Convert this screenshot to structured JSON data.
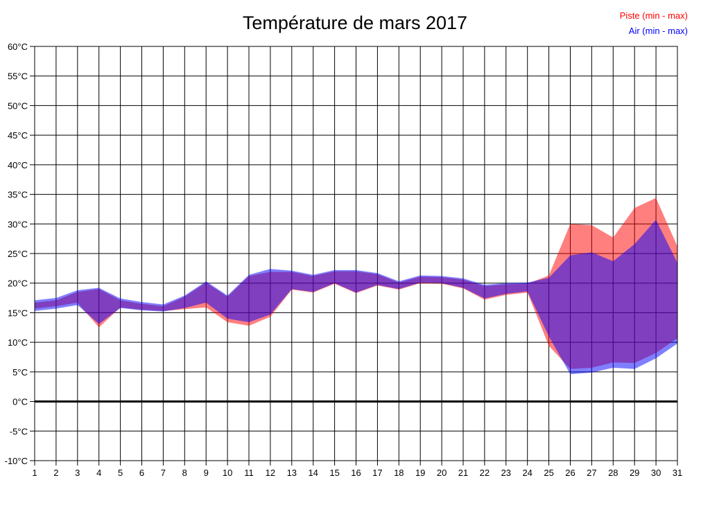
{
  "title": "Température de mars 2017",
  "legend": {
    "items": [
      {
        "label": "Piste (min - max)",
        "color": "#ff0000"
      },
      {
        "label": "Air (min - max)",
        "color": "#0000ff"
      }
    ]
  },
  "chart_data": {
    "type": "area",
    "title": "Température de mars 2017",
    "xlabel": "",
    "ylabel": "",
    "x": [
      1,
      2,
      3,
      4,
      5,
      6,
      7,
      8,
      9,
      10,
      11,
      12,
      13,
      14,
      15,
      16,
      17,
      18,
      19,
      20,
      21,
      22,
      23,
      24,
      25,
      26,
      27,
      28,
      29,
      30,
      31
    ],
    "xtick_labels": [
      "1",
      "2",
      "3",
      "4",
      "5",
      "6",
      "7",
      "8",
      "9",
      "10",
      "11",
      "12",
      "13",
      "14",
      "15",
      "16",
      "17",
      "18",
      "19",
      "20",
      "21",
      "22",
      "23",
      "24",
      "25",
      "26",
      "27",
      "28",
      "29",
      "30",
      "31"
    ],
    "ylim": [
      -10,
      60
    ],
    "ytick_step": 5,
    "yticks": [
      60,
      55,
      50,
      45,
      40,
      35,
      30,
      25,
      20,
      15,
      10,
      5,
      0,
      -5,
      -10
    ],
    "ytick_labels": [
      "60°C",
      "55°C",
      "50°C",
      "45°C",
      "40°C",
      "35°C",
      "30°C",
      "25°C",
      "20°C",
      "15°C",
      "10°C",
      "5°C",
      "0°C",
      "-5°C",
      "-10°C"
    ],
    "grid": true,
    "grid_color": "#000000",
    "zero_line": {
      "value": 0,
      "bold": true,
      "width": 3
    },
    "legend_position": "top-right",
    "fill_opacity": 0.5,
    "overlap_color_rendered": "#8040c0",
    "series": [
      {
        "name": "Piste (min - max)",
        "color": "#ff0000",
        "max": [
          16.7,
          17.1,
          18.5,
          19.0,
          17.1,
          16.5,
          16.1,
          17.7,
          20.1,
          17.7,
          21.2,
          21.9,
          21.9,
          21.2,
          22.0,
          22.0,
          21.5,
          20.1,
          21.1,
          21.0,
          20.6,
          19.5,
          19.8,
          19.9,
          21.3,
          30.0,
          29.8,
          27.7,
          32.7,
          34.4,
          26.2
        ],
        "min": [
          15.7,
          16.1,
          16.7,
          12.5,
          15.9,
          15.5,
          15.3,
          15.6,
          15.9,
          13.4,
          12.8,
          14.3,
          18.9,
          18.4,
          19.9,
          18.3,
          19.6,
          18.9,
          20.0,
          19.9,
          19.1,
          17.2,
          18.0,
          18.4,
          9.4,
          5.5,
          5.7,
          6.6,
          6.5,
          8.2,
          10.7
        ]
      },
      {
        "name": "Air (min - max)",
        "color": "#0000ff",
        "max": [
          17.1,
          17.5,
          18.8,
          19.2,
          17.4,
          16.8,
          16.4,
          17.9,
          20.3,
          17.9,
          21.4,
          22.4,
          22.1,
          21.4,
          22.2,
          22.2,
          21.7,
          20.3,
          21.3,
          21.2,
          20.8,
          19.7,
          20.0,
          20.1,
          20.9,
          24.7,
          25.2,
          23.7,
          26.6,
          30.7,
          23.4
        ],
        "min": [
          15.3,
          15.7,
          16.3,
          13.1,
          15.8,
          15.4,
          15.2,
          15.8,
          16.7,
          14.0,
          13.4,
          14.7,
          19.0,
          18.5,
          20.0,
          18.4,
          19.7,
          19.0,
          20.1,
          20.0,
          19.2,
          17.4,
          18.2,
          18.6,
          11.0,
          4.6,
          4.9,
          5.7,
          5.5,
          7.3,
          9.8
        ]
      }
    ]
  }
}
